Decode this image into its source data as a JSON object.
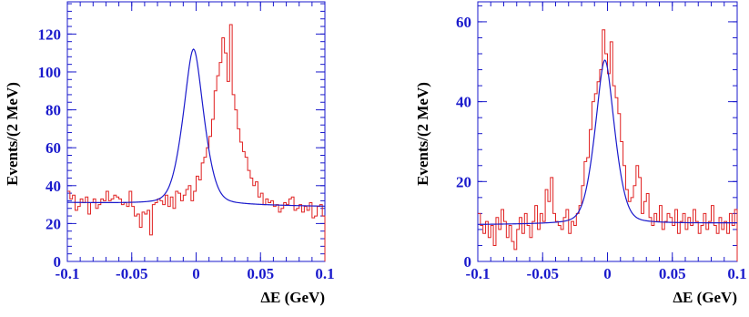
{
  "chart_data": [
    {
      "type": "histogram",
      "xlabel": "ΔE (GeV)",
      "ylabel": "Events/(2 MeV)",
      "xlim": [
        -0.1,
        0.1
      ],
      "ylim": [
        0,
        137
      ],
      "xticks": [
        -0.1,
        -0.05,
        0,
        0.05,
        0.1
      ],
      "xtick_labels": [
        "-0.1",
        "-0.05",
        "0",
        "0.05",
        "0.1"
      ],
      "yticks": [
        0,
        20,
        40,
        60,
        80,
        100,
        120
      ],
      "ytick_labels": [
        "0",
        "20",
        "40",
        "60",
        "80",
        "100",
        "120"
      ],
      "bin_width": 0.002,
      "histogram_color": "#e02020",
      "fit_color": "#1a1acc",
      "histogram_values": [
        37,
        33,
        35,
        27,
        29,
        33,
        31,
        34,
        25,
        31,
        33,
        28,
        30,
        33,
        32,
        37,
        32,
        33,
        35,
        34,
        33,
        30,
        31,
        29,
        37,
        29,
        24,
        25,
        18,
        26,
        25,
        27,
        14,
        30,
        31,
        33,
        32,
        30,
        35,
        29,
        34,
        28,
        37,
        36,
        32,
        35,
        38,
        40,
        32,
        37,
        45,
        43,
        52,
        55,
        60,
        66,
        75,
        90,
        98,
        105,
        118,
        110,
        95,
        125,
        88,
        80,
        70,
        63,
        58,
        55,
        48,
        44,
        40,
        42,
        34,
        36,
        30,
        33,
        31,
        32,
        29,
        30,
        26,
        28,
        31,
        30,
        33,
        34,
        27,
        28,
        30,
        26,
        29,
        27,
        31,
        23,
        24,
        29,
        30,
        24
      ],
      "fit": {
        "background": [
          31,
          29
        ],
        "peak_center": -0.002,
        "peak_amplitude": 82,
        "peak_width": 0.009
      }
    },
    {
      "type": "histogram",
      "xlabel": "ΔE (GeV)",
      "ylabel": "Events/(2 MeV)",
      "xlim": [
        -0.1,
        0.1
      ],
      "ylim": [
        0,
        65
      ],
      "xticks": [
        -0.1,
        -0.05,
        0,
        0.05,
        0.1
      ],
      "xtick_labels": [
        "-0.1",
        "-0.05",
        "0",
        "0.05",
        "0.1"
      ],
      "yticks": [
        0,
        20,
        40,
        60
      ],
      "ytick_labels": [
        "0",
        "20",
        "40",
        "60"
      ],
      "bin_width": 0.002,
      "histogram_color": "#e02020",
      "fit_color": "#1a1acc",
      "histogram_values": [
        12,
        9,
        7,
        10,
        6,
        9,
        4,
        11,
        8,
        13,
        10,
        6,
        9,
        5,
        3,
        8,
        11,
        7,
        12,
        9,
        6,
        10,
        14,
        8,
        12,
        10,
        18,
        15,
        21,
        12,
        10,
        9,
        8,
        11,
        13,
        7,
        10,
        9,
        12,
        14,
        19,
        25,
        26,
        33,
        40,
        42,
        45,
        48,
        58,
        52,
        47,
        55,
        44,
        41,
        37,
        30,
        24,
        18,
        15,
        16,
        19,
        24,
        21,
        12,
        15,
        17,
        11,
        9,
        12,
        10,
        14,
        8,
        10,
        12,
        11,
        9,
        13,
        7,
        10,
        12,
        8,
        11,
        9,
        13,
        10,
        7,
        9,
        12,
        8,
        10,
        14,
        9,
        7,
        11,
        8,
        10,
        7,
        12,
        9,
        13
      ],
      "fit": {
        "background": [
          9.2,
          9.6
        ],
        "peak_center": -0.002,
        "peak_amplitude": 41,
        "peak_width": 0.0085
      }
    }
  ]
}
